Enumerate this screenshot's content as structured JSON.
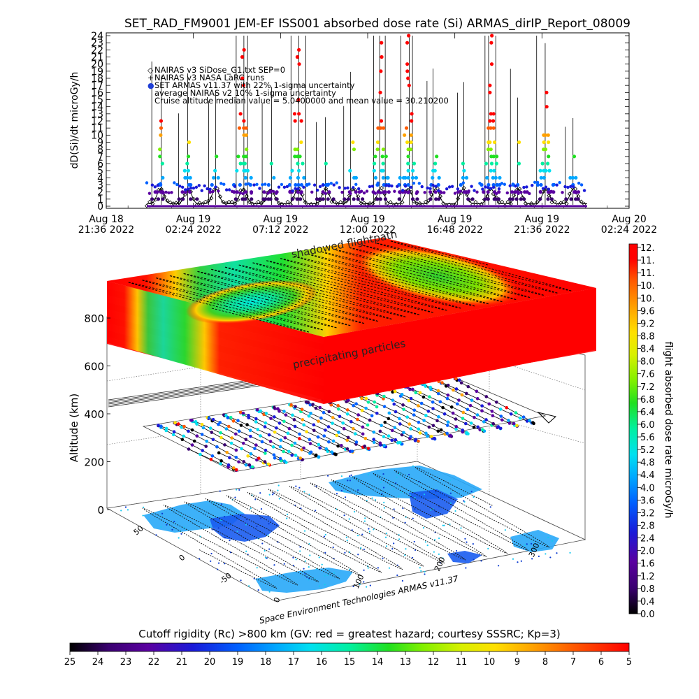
{
  "title": "SET_RAD_FM9001   JEM-EF ISS001 absorbed dose rate (Si) ARMAS_dirIP_Report_08009",
  "chart_data": [
    {
      "type": "line",
      "panel": "time series",
      "ylabel": "dD(Si)/dt microGy/h",
      "ylim": [
        0,
        24
      ],
      "y_ticks": [
        "0",
        "1",
        "2",
        "3",
        "4",
        "5",
        "6",
        "7",
        "8",
        "9",
        "10",
        "11",
        "12",
        "13",
        "14",
        "15",
        "16",
        "17",
        "18",
        "19",
        "20",
        "21",
        "22",
        "23",
        "24"
      ],
      "x_ticks": [
        {
          "date": "Aug 18",
          "time": "21:36 2022"
        },
        {
          "date": "Aug 19",
          "time": "02:24 2022"
        },
        {
          "date": "Aug 19",
          "time": "07:12 2022"
        },
        {
          "date": "Aug 19",
          "time": "12:00 2022"
        },
        {
          "date": "Aug 19",
          "time": "16:48 2022"
        },
        {
          "date": "Aug 19",
          "time": "21:36 2022"
        },
        {
          "date": "Aug 20",
          "time": "02:24 2022"
        }
      ],
      "legend": [
        {
          "symbol": "◇",
          "text": "NAIRAS v3 SiDose_G1.txt  SEP=0",
          "color": "#000000"
        },
        {
          "symbol": "+",
          "text": "NAIRAS v3 NASA LaRC runs",
          "color": "#000000"
        },
        {
          "symbol": "●",
          "text": "SET ARMAS v11.37 with 22% 1-sigma uncertainty",
          "color": "#1f3fd6"
        },
        {
          "symbol": "",
          "text": "average NAIRAS v2 10% 1-sigma uncertainty",
          "color": "#000000"
        },
        {
          "symbol": "",
          "text": "Cruise altitude median value = 5.0400000 and mean value = 30.210200",
          "color": "#000000"
        }
      ],
      "orbit_count": 16,
      "orbit_peak_values": [
        12,
        9,
        7,
        24,
        8,
        24,
        6,
        9,
        24,
        24,
        10,
        8,
        24,
        11,
        18,
        7
      ],
      "baseline_dose": 2.4
    },
    {
      "type": "heatmap",
      "panel": "3D flightpath view",
      "ylabel": "Altitude (km)",
      "z_ticks": [
        "0",
        "200",
        "400",
        "600",
        "800"
      ],
      "lat_ticks": [
        "-50",
        "0",
        "50"
      ],
      "lon_ticks": [
        "0",
        "100",
        "200",
        "300"
      ],
      "annotations": [
        "shadowed flightpath",
        "precipitating particles"
      ],
      "credit": "Space Environment Technologies ARMAS v11.37"
    }
  ],
  "colorbar_right": {
    "label": "flight absorbed dose rate microGy/h",
    "ticks": [
      "12.",
      "11.",
      "11.",
      "10.",
      "10.",
      "9.6",
      "9.2",
      "8.8",
      "8.4",
      "8.0",
      "7.6",
      "7.2",
      "6.8",
      "6.4",
      "6.0",
      "5.6",
      "5.2",
      "4.8",
      "4.4",
      "4.0",
      "3.6",
      "3.2",
      "2.8",
      "2.4",
      "2.0",
      "1.6",
      "1.2",
      "0.8",
      "0.4",
      "0.0"
    ]
  },
  "colorbar_bottom": {
    "label": "Cutoff rigidity (Rc) >800 km (GV: red = greatest hazard; courtesy SSSRC; Kp=3)",
    "ticks": [
      "25",
      "24",
      "23",
      "22",
      "21",
      "20",
      "19",
      "18",
      "17",
      "16",
      "15",
      "14",
      "13",
      "12",
      "11",
      "10",
      "9",
      "8",
      "7",
      "6",
      "5"
    ]
  },
  "palette": [
    "#000000",
    "#3a0070",
    "#5a00a0",
    "#1a1ad8",
    "#0060ff",
    "#00a8ff",
    "#00e0f0",
    "#00f0a0",
    "#20e020",
    "#80f000",
    "#d8f000",
    "#ffe000",
    "#ffa000",
    "#ff5a00",
    "#ff0000"
  ]
}
